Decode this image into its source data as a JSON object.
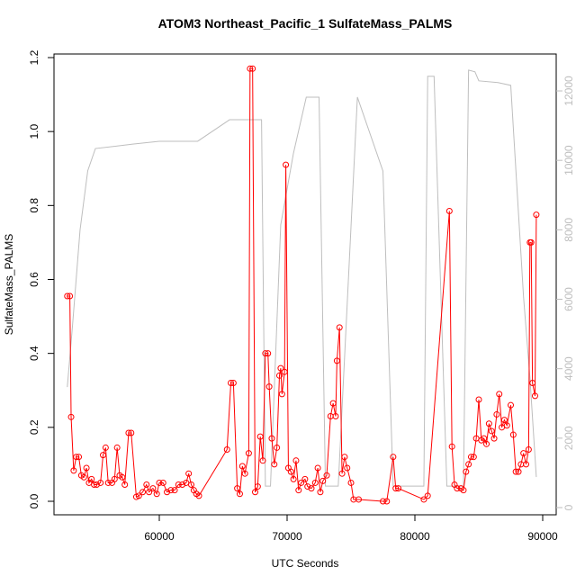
{
  "chart_data": {
    "type": "line",
    "title": "ATOM3 Northeast_Pacific_1 SulfateMass_PALMS",
    "x_label": "UTC Seconds",
    "y_label": "SulfateMass_PALMS",
    "xlim": [
      51760,
      91056
    ],
    "ylim": [
      -0.0365,
      1.2097
    ],
    "y2lim": [
      -207,
      13063
    ],
    "xticks": [
      60000,
      70000,
      80000,
      90000
    ],
    "yticks": [
      {
        "value": 0,
        "label": "0.0"
      },
      0.2,
      0.4,
      0.6,
      0.8,
      {
        "value": 1,
        "label": "1.0"
      },
      1.2
    ],
    "y2ticks": [
      0,
      2000,
      4000,
      6000,
      8000,
      10000,
      12000
    ],
    "series": [
      {
        "color": "#ff0000",
        "markers": true,
        "x": [
          52800,
          53000,
          53100,
          53300,
          53500,
          53700,
          53900,
          54100,
          54300,
          54500,
          54700,
          54900,
          55100,
          55400,
          55600,
          55800,
          56000,
          56300,
          56500,
          56700,
          56900,
          57100,
          57300,
          57600,
          57800,
          58200,
          58400,
          58700,
          59000,
          59200,
          59500,
          59800,
          60000,
          60300,
          60600,
          60900,
          61200,
          61500,
          61800,
          62100,
          62300,
          62500,
          62700,
          62900,
          63100,
          65300,
          65600,
          65800,
          66100,
          66300,
          66500,
          66700,
          67000,
          67100,
          67300,
          67500,
          67700,
          67900,
          68100,
          68300,
          68500,
          68600,
          68800,
          69000,
          69200,
          69400,
          69500,
          69600,
          69800,
          69900,
          70100,
          70300,
          70500,
          70700,
          70900,
          71100,
          71400,
          71600,
          71900,
          72200,
          72400,
          72600,
          72800,
          73100,
          73400,
          73600,
          73800,
          73900,
          74100,
          74300,
          74500,
          74700,
          75000,
          75200,
          75600,
          77500,
          77800,
          78300,
          78500,
          78700,
          80700,
          81000,
          82700,
          82900,
          83100,
          83300,
          83600,
          83800,
          84000,
          84200,
          84400,
          84600,
          84800,
          85000,
          85200,
          85400,
          85600,
          85800,
          86000,
          86200,
          86400,
          86600,
          86800,
          87000,
          87200,
          87500,
          87700,
          87900,
          88100,
          88300,
          88500,
          88700,
          88900,
          89000,
          89100,
          89200,
          89400,
          89500
        ],
        "values": [
          0.555,
          0.555,
          0.228,
          0.083,
          0.12,
          0.12,
          0.07,
          0.065,
          0.09,
          0.05,
          0.06,
          0.045,
          0.045,
          0.05,
          0.125,
          0.145,
          0.05,
          0.05,
          0.06,
          0.145,
          0.07,
          0.065,
          0.045,
          0.185,
          0.185,
          0.012,
          0.015,
          0.025,
          0.045,
          0.025,
          0.035,
          0.02,
          0.05,
          0.05,
          0.025,
          0.03,
          0.03,
          0.045,
          0.045,
          0.05,
          0.075,
          0.045,
          0.03,
          0.02,
          0.015,
          0.14,
          0.32,
          0.32,
          0.035,
          0.02,
          0.095,
          0.075,
          0.13,
          1.17,
          1.17,
          0.025,
          0.04,
          0.175,
          0.11,
          0.4,
          0.4,
          0.31,
          0.17,
          0.1,
          0.145,
          0.34,
          0.36,
          0.29,
          0.35,
          0.91,
          0.09,
          0.08,
          0.06,
          0.11,
          0.03,
          0.05,
          0.06,
          0.04,
          0.035,
          0.05,
          0.09,
          0.025,
          0.055,
          0.07,
          0.23,
          0.265,
          0.23,
          0.38,
          0.47,
          0.075,
          0.12,
          0.09,
          0.05,
          0.005,
          0.005,
          0.0,
          0.0,
          0.12,
          0.035,
          0.035,
          0.005,
          0.015,
          0.785,
          0.148,
          0.045,
          0.035,
          0.035,
          0.03,
          0.08,
          0.1,
          0.12,
          0.12,
          0.17,
          0.275,
          0.165,
          0.17,
          0.155,
          0.21,
          0.19,
          0.17,
          0.235,
          0.29,
          0.2,
          0.22,
          0.205,
          0.26,
          0.18,
          0.08,
          0.08,
          0.1,
          0.13,
          0.1,
          0.14,
          0.7,
          0.7,
          0.32,
          0.285,
          0.775
        ]
      },
      {
        "color": "#bebebe",
        "axis": "y2",
        "markers": false,
        "x": [
          52800,
          53200,
          53800,
          54400,
          55000,
          58000,
          60000,
          63000,
          65500,
          68000,
          68300,
          68700,
          69500,
          70500,
          71500,
          72500,
          73000,
          74000,
          75500,
          77500,
          78300,
          80700,
          81000,
          81500,
          82500,
          83800,
          84200,
          84700,
          85000,
          86500,
          87500,
          88500,
          89000,
          89500
        ],
        "values": [
          3470,
          5200,
          8000,
          9700,
          10340,
          10470,
          10550,
          10550,
          11170,
          11170,
          620,
          620,
          8140,
          10210,
          11820,
          11820,
          620,
          620,
          11820,
          9690,
          620,
          620,
          12420,
          12420,
          620,
          620,
          12600,
          12550,
          12290,
          12240,
          12160,
          6070,
          3740,
          880
        ]
      }
    ]
  }
}
